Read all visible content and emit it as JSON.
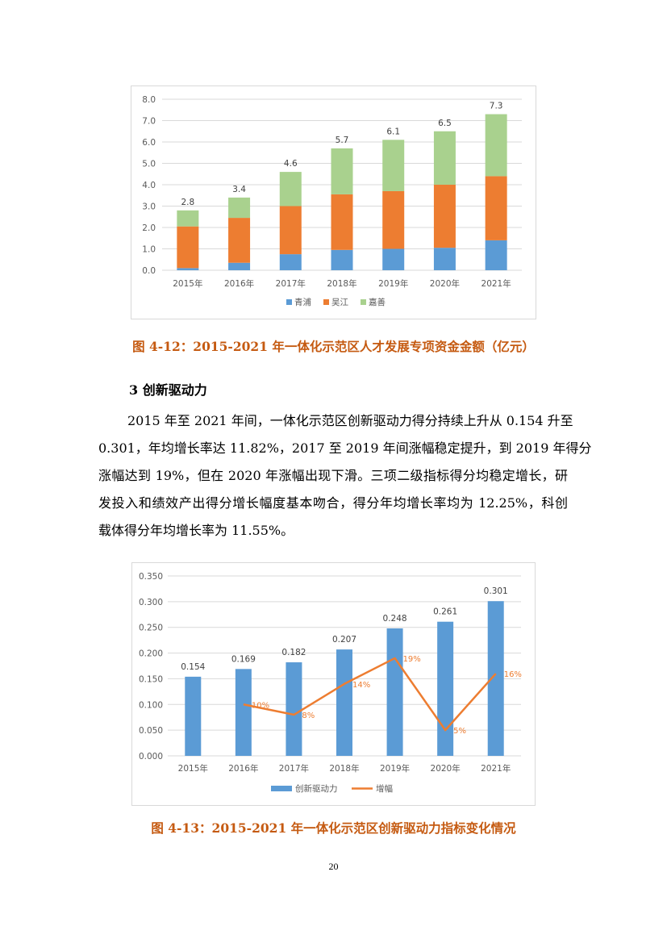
{
  "chart_data": [
    {
      "type": "bar",
      "stacked": true,
      "categories": [
        "2015年",
        "2016年",
        "2017年",
        "2018年",
        "2019年",
        "2020年",
        "2021年"
      ],
      "series": [
        {
          "name": "青浦",
          "color": "#5b9bd5",
          "values": [
            0.1,
            0.35,
            0.75,
            0.95,
            1.0,
            1.05,
            1.4
          ]
        },
        {
          "name": "吴江",
          "color": "#ed7d31",
          "values": [
            1.95,
            2.1,
            2.25,
            2.6,
            2.7,
            2.95,
            3.0
          ]
        },
        {
          "name": "嘉善",
          "color": "#a9d18e",
          "values": [
            0.75,
            0.95,
            1.6,
            2.15,
            2.4,
            2.5,
            2.9
          ]
        }
      ],
      "totals": [
        "2.8",
        "3.4",
        "4.6",
        "5.7",
        "6.1",
        "6.5",
        "7.3"
      ],
      "yticks": [
        "0.0",
        "1.0",
        "2.0",
        "3.0",
        "4.0",
        "5.0",
        "6.0",
        "7.0",
        "8.0"
      ],
      "ylim": [
        0,
        8
      ],
      "legend_position": "bottom",
      "grid": true
    },
    {
      "type": "bar+line",
      "categories": [
        "2015年",
        "2016年",
        "2017年",
        "2018年",
        "2019年",
        "2020年",
        "2021年"
      ],
      "series": [
        {
          "name": "创新驱动力",
          "type": "bar",
          "color": "#5b9bd5",
          "values": [
            0.154,
            0.169,
            0.182,
            0.207,
            0.248,
            0.261,
            0.301
          ],
          "labels": [
            "0.154",
            "0.169",
            "0.182",
            "0.207",
            "0.248",
            "0.261",
            "0.301"
          ]
        },
        {
          "name": "增幅",
          "type": "line",
          "color": "#ed7d31",
          "values": [
            null,
            0.1,
            0.08,
            0.14,
            0.19,
            0.05,
            0.16
          ],
          "labels": [
            "",
            "10%",
            "8%",
            "14%",
            "19%",
            "5%",
            "16%"
          ]
        }
      ],
      "yticks": [
        "0.000",
        "0.050",
        "0.100",
        "0.150",
        "0.200",
        "0.250",
        "0.300",
        "0.350"
      ],
      "ylim": [
        0,
        0.35
      ],
      "legend_position": "bottom",
      "grid": true
    }
  ],
  "captions": {
    "fig1": "图 4-12：2015-2021 年一体化示范区人才发展专项资金金额（亿元）",
    "fig2": "图 4-13：2015-2021 年一体化示范区创新驱动力指标变化情况"
  },
  "section": {
    "heading": "3 创新驱动力",
    "lines": [
      "2015 年至 2021 年间，一体化示范区创新驱动力得分持续上升从 0.154 升至",
      "0.301，年均增长率达 11.82%，2017 至 2019 年间涨幅稳定提升，到 2019 年得分",
      "涨幅达到 19%，但在 2020 年涨幅出现下滑。三项二级指标得分均稳定增长，研",
      "发投入和绩效产出得分增长幅度基本吻合，得分年均增长率均为 12.25%，科创",
      "载体得分年均增长率为 11.55%。"
    ]
  },
  "page_number": "20"
}
